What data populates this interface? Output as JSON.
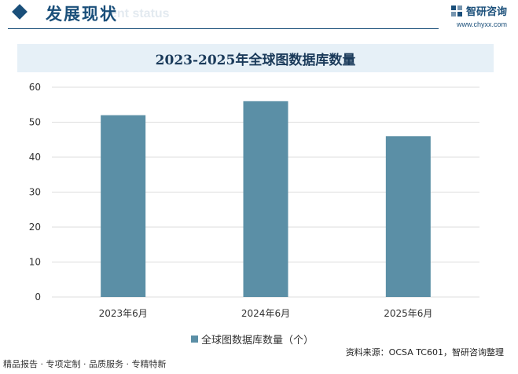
{
  "header": {
    "title": "发展现状",
    "title_en": "ent status",
    "brand_name": "智研咨询",
    "brand_url": "www.chyxx.com"
  },
  "watermark_text": "智研咨询",
  "chart_data": {
    "type": "bar",
    "title": "2023-2025年全球图数据库数量",
    "categories": [
      "2023年6月",
      "2024年6月",
      "2025年6月"
    ],
    "series": [
      {
        "name": "全球图数据库数量（个）",
        "values": [
          52,
          56,
          46
        ],
        "color": "#5b8fa6"
      }
    ],
    "ylim": [
      0,
      60
    ],
    "yticks": [
      0,
      10,
      20,
      30,
      40,
      50,
      60
    ],
    "grid": true,
    "legend": "bottom"
  },
  "source": "资料来源：OCSA TC601，智研咨询整理",
  "footer": "精品报告 · 专项定制 · 品质服务 · 专精特新",
  "colors": {
    "brand": "#1a4f7a",
    "bar": "#5b8fa6",
    "grid": "#dddddd",
    "title_bar": "#e6f0f7"
  }
}
